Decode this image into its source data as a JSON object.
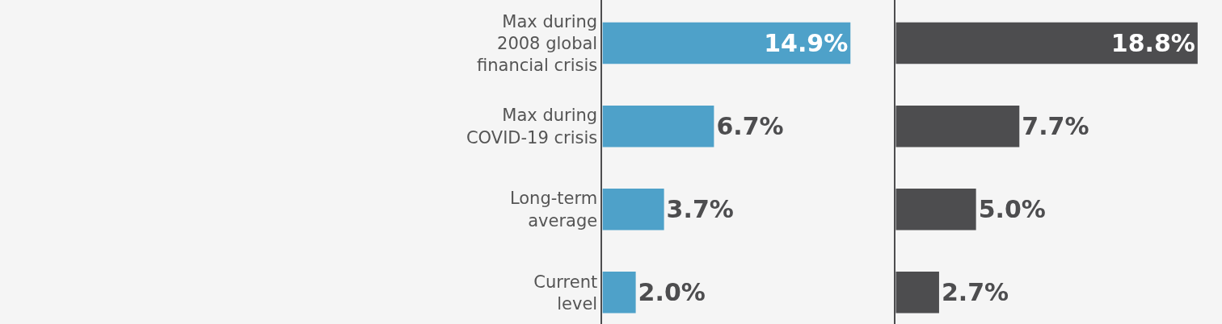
{
  "chart_data": [
    {
      "type": "bar",
      "orientation": "horizontal",
      "categories": [
        "Max during\n2008 global\nfinancial crisis",
        "Max during\nCOVID-19 crisis",
        "Long-term\naverage",
        "Current\nlevel"
      ],
      "values": [
        14.9,
        6.7,
        3.7,
        2.0
      ],
      "value_labels": [
        "14.9%",
        "6.7%",
        "3.7%",
        "2.0%"
      ],
      "color": "#4ea1c9",
      "tick_labels": "y"
    },
    {
      "type": "bar",
      "orientation": "horizontal",
      "categories": [
        null,
        null,
        null,
        null
      ],
      "values": [
        18.8,
        7.7,
        5.0,
        2.7
      ],
      "value_labels": [
        "18.8%",
        "7.7%",
        "5.0%",
        "2.7%"
      ],
      "color": "#4d4d4f",
      "tick_labels": false
    }
  ]
}
